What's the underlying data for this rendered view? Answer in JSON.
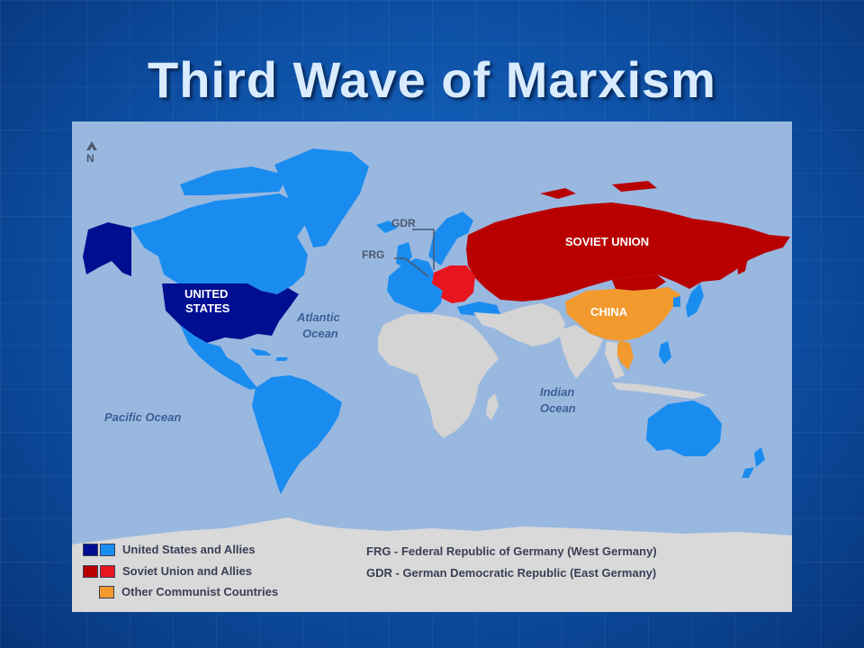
{
  "slide": {
    "title": "Third Wave of Marxism"
  },
  "map": {
    "compass": {
      "letter": "N"
    },
    "country_labels": {
      "usa": [
        "UNITED",
        "STATES"
      ],
      "ussr": "SOVIET UNION",
      "china": "CHINA"
    },
    "callouts": {
      "gdr": "GDR",
      "frg": "FRG"
    },
    "oceans": {
      "atlantic": [
        "Atlantic",
        "Ocean"
      ],
      "pacific": "Pacific Ocean",
      "indian": [
        "Indian",
        "Ocean"
      ]
    },
    "colors": {
      "ocean": "#99b8e0",
      "us_dark": "#000e91",
      "us_allies": "#1a8cf0",
      "soviet_dark": "#b80000",
      "soviet_allies": "#e8141e",
      "other_communist": "#f39a2e",
      "neutral": "#d4d4d4",
      "antarctica": "#d9d9d9"
    },
    "legend": {
      "items": [
        {
          "label": "United States and Allies",
          "swatches": [
            "#000e91",
            "#1a8cf0"
          ]
        },
        {
          "label": "Soviet Union and Allies",
          "swatches": [
            "#b80000",
            "#e8141e"
          ]
        },
        {
          "label": "Other Communist Countries",
          "swatches": [
            "#f39a2e"
          ]
        }
      ],
      "notes": [
        "FRG - Federal Republic of Germany (West Germany)",
        "GDR - German Democratic Republic (East Germany)"
      ]
    }
  }
}
